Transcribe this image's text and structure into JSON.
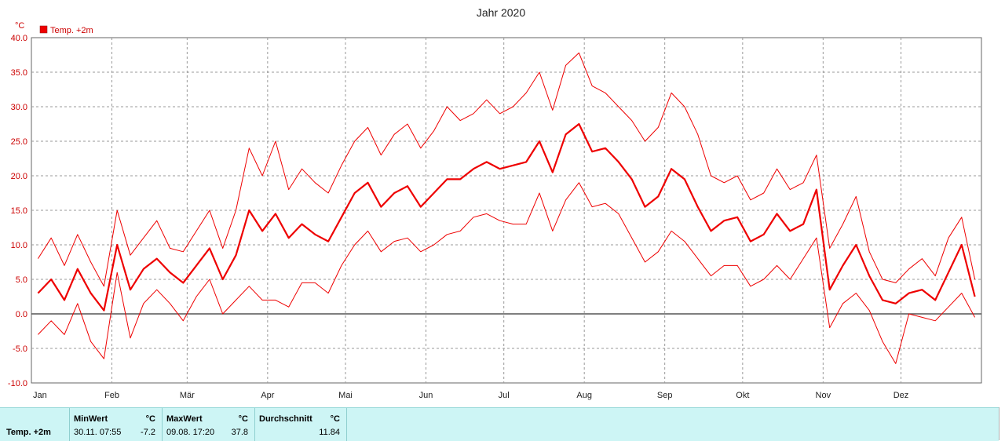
{
  "chart_data": {
    "type": "line",
    "title": "Jahr 2020",
    "unit": "°C",
    "legend": {
      "entries": [
        "Temp. +2m"
      ],
      "placement": "top-left"
    },
    "xlabel": "",
    "ylabel": "",
    "ylim": [
      -10,
      40
    ],
    "yticks": [
      "40.0",
      "35.0",
      "30.0",
      "25.0",
      "20.0",
      "15.0",
      "10.0",
      "5.0",
      "0.0",
      "-5.0",
      "-10.0"
    ],
    "month_labels": [
      "Jan",
      "Feb",
      "Mär",
      "Apr",
      "Mai",
      "Jun",
      "Jul",
      "Aug",
      "Sep",
      "Okt",
      "Nov",
      "Dez"
    ],
    "grid": true,
    "series": [
      {
        "name": "Temp. +2m",
        "color": "#ee0000",
        "mean_weekly": [
          3.0,
          5.0,
          2.0,
          6.5,
          3.0,
          0.5,
          10.0,
          3.5,
          6.5,
          8.0,
          6.0,
          4.5,
          7.0,
          9.5,
          5.0,
          8.5,
          15.0,
          12.0,
          14.5,
          11.0,
          13.0,
          11.5,
          10.5,
          14.0,
          17.5,
          19.0,
          15.5,
          17.5,
          18.5,
          15.5,
          17.5,
          19.5,
          19.5,
          21.0,
          22.0,
          21.0,
          21.5,
          22.0,
          25.0,
          20.5,
          26.0,
          27.5,
          23.5,
          24.0,
          22.0,
          19.5,
          15.5,
          17.0,
          21.0,
          19.5,
          15.5,
          12.0,
          13.5,
          14.0,
          10.5,
          11.5,
          14.5,
          12.0,
          13.0,
          18.0,
          3.5,
          7.0,
          10.0,
          5.5,
          2.0,
          1.5,
          3.0,
          3.5,
          2.0,
          6.0,
          10.0,
          2.5
        ],
        "max_weekly": [
          8.0,
          11.0,
          7.0,
          11.5,
          7.5,
          4.0,
          15.0,
          8.5,
          11.0,
          13.5,
          9.5,
          9.0,
          12.0,
          15.0,
          9.5,
          15.0,
          24.0,
          20.0,
          25.0,
          18.0,
          21.0,
          19.0,
          17.5,
          21.5,
          25.0,
          27.0,
          23.0,
          26.0,
          27.5,
          24.0,
          26.5,
          30.0,
          28.0,
          29.0,
          31.0,
          29.0,
          30.0,
          32.0,
          35.0,
          29.5,
          36.0,
          37.8,
          33.0,
          32.0,
          30.0,
          28.0,
          25.0,
          27.0,
          32.0,
          30.0,
          26.0,
          20.0,
          19.0,
          20.0,
          16.5,
          17.5,
          21.0,
          18.0,
          19.0,
          23.0,
          9.5,
          13.0,
          17.0,
          9.0,
          5.0,
          4.5,
          6.5,
          8.0,
          5.5,
          11.0,
          14.0,
          5.0
        ],
        "min_weekly": [
          -3.0,
          -1.0,
          -3.0,
          1.5,
          -4.0,
          -6.5,
          6.0,
          -3.5,
          1.5,
          3.5,
          1.5,
          -1.0,
          2.5,
          5.0,
          0.0,
          2.0,
          4.0,
          2.0,
          2.0,
          1.0,
          4.5,
          4.5,
          3.0,
          7.0,
          10.0,
          12.0,
          9.0,
          10.5,
          11.0,
          9.0,
          10.0,
          11.5,
          12.0,
          14.0,
          14.5,
          13.5,
          13.0,
          13.0,
          17.5,
          12.0,
          16.5,
          19.0,
          15.5,
          16.0,
          14.5,
          11.0,
          7.5,
          9.0,
          12.0,
          10.5,
          8.0,
          5.5,
          7.0,
          7.0,
          4.0,
          5.0,
          7.0,
          5.0,
          8.0,
          11.0,
          -2.0,
          1.5,
          3.0,
          0.5,
          -4.0,
          -7.2,
          0.0,
          -0.5,
          -1.0,
          1.0,
          3.0,
          -0.5
        ]
      }
    ]
  },
  "stats": {
    "sensor": "Temp. +2m",
    "min_label": "MinWert",
    "min_unit": "°C",
    "min_time": "30.11.  07:55",
    "min_value": "-7.2",
    "max_label": "MaxWert",
    "max_unit": "°C",
    "max_time": "09.08.  17:20",
    "max_value": "37.8",
    "avg_label": "Durchschnitt",
    "avg_unit": "°C",
    "avg_value": "11.84"
  }
}
